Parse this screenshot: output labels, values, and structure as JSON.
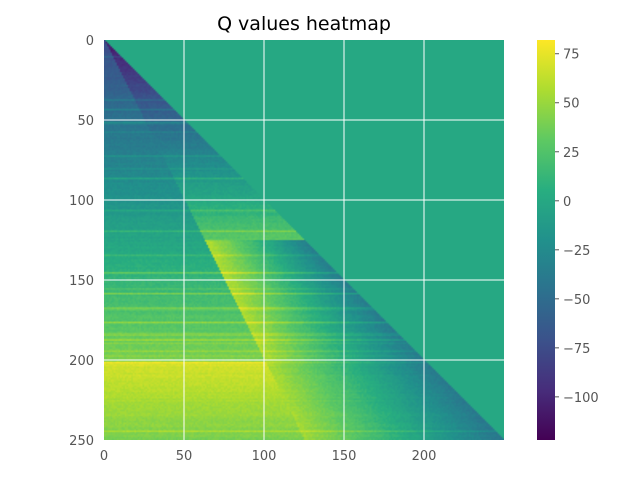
{
  "chart_data": {
    "type": "heatmap",
    "title": "Q values heatmap",
    "xlabel": "",
    "ylabel": "",
    "colormap": "viridis",
    "n_rows": 250,
    "n_cols": 250,
    "xlim": [
      0,
      250
    ],
    "ylim": [
      250,
      0
    ],
    "x_ticks": [
      0,
      50,
      100,
      150,
      200
    ],
    "y_ticks": [
      0,
      50,
      100,
      150,
      200,
      250
    ],
    "grid": true,
    "grid_color": "#ffffff",
    "colorbar": {
      "vmin": -122,
      "vmax": 82,
      "ticks": [
        75,
        50,
        25,
        0,
        -25,
        -50,
        -75,
        -100
      ],
      "tick_labels": [
        "75",
        "50",
        "25",
        "0",
        "−25",
        "−50",
        "−75",
        "−100"
      ]
    },
    "regions": [
      {
        "name": "upper-triangle",
        "rule": "col > row",
        "value": 0
      },
      {
        "name": "band-a",
        "rule": "col <= row and row < 2*col",
        "value_range": [
          -110,
          30
        ]
      },
      {
        "name": "band-b",
        "rule": "col <= row and row >= 2*col",
        "value_range": [
          -75,
          70
        ]
      },
      {
        "name": "lower-right",
        "rule": "col >= row/2 and row in 125..250",
        "value_range": [
          40,
          -35
        ]
      }
    ]
  }
}
